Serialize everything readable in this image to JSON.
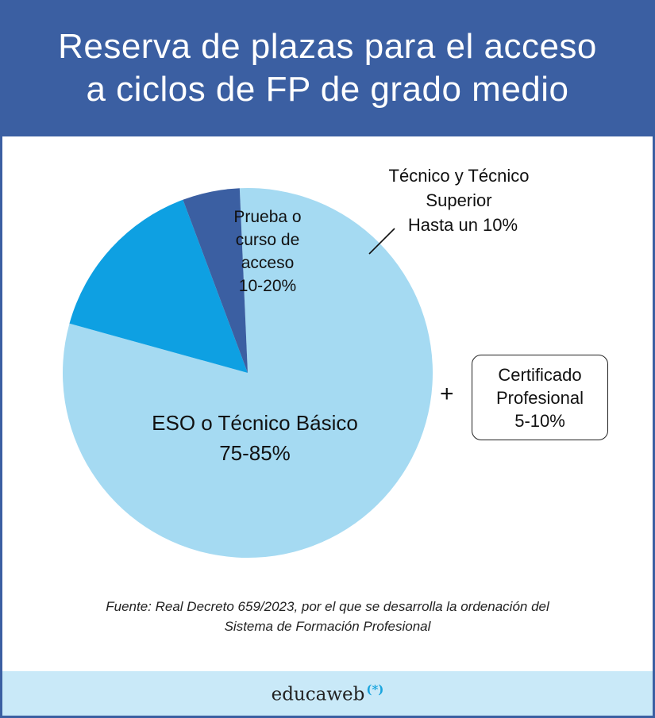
{
  "header": {
    "title_line1": "Reserva de plazas para el acceso",
    "title_line2": "a ciclos de FP de grado medio"
  },
  "chart_data": {
    "type": "pie",
    "slices": [
      {
        "label": "ESO o Técnico Básico",
        "value_text": "75-85%",
        "value": 80,
        "color": "#a5daf2"
      },
      {
        "label": "Prueba o curso de acceso",
        "value_text": "10-20%",
        "value": 15,
        "color": "#0ea0e2"
      },
      {
        "label": "Técnico y Técnico Superior",
        "value_text": "Hasta un 10%",
        "value": 5,
        "color": "#3b5fa2"
      }
    ],
    "labels": {
      "eso_line1": "ESO o Técnico Básico",
      "eso_line2": "75-85%",
      "prueba_line1": "Prueba o",
      "prueba_line2": "curso de",
      "prueba_line3": "acceso",
      "prueba_line4": "10-20%",
      "tecnico_line1": "Técnico y Técnico",
      "tecnico_line2": "Superior",
      "tecnico_line3": "Hasta un 10%"
    },
    "extra": {
      "symbol": "+",
      "line1": "Certificado",
      "line2": "Profesional",
      "line3": "5-10%"
    }
  },
  "source": {
    "line1": "Fuente: Real Decreto 659/2023, por el que se desarrolla la ordenación del",
    "line2": "Sistema de Formación Profesional"
  },
  "footer": {
    "brand": "educaweb",
    "brand_mark": "(*)"
  }
}
